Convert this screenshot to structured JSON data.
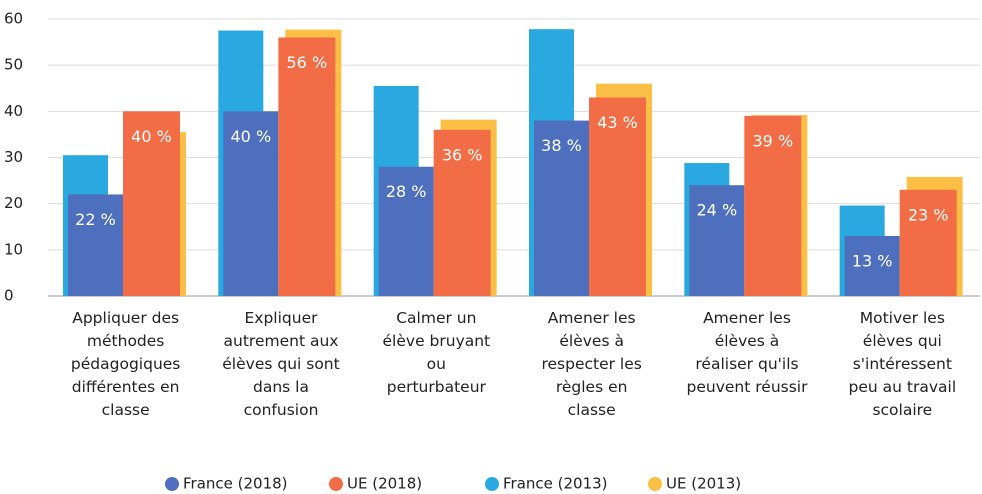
{
  "chart_data": {
    "type": "bar",
    "categories": [
      "Appliquer des\nméthodes\npédagogiques\ndifférentes en\nclasse",
      "Expliquer\nautrement aux\nélèves qui sont\ndans la\nconfusion",
      "Calmer un\nélève bruyant\nou\nperturbateur",
      "Amener les\nélèves à\nrespecter les\nrègles en\nclasse",
      "Amener les\nélèves à\nréaliser qu'ils\npeuvent réussir",
      "Motiver les\nélèves qui\ns'intéressent\npeu au travail\nscolaire"
    ],
    "series": [
      {
        "name": "France (2018)",
        "color": "#4e6fbe",
        "values": [
          22,
          40,
          28,
          38,
          24,
          13
        ],
        "value_labels": [
          "22 %",
          "40 %",
          "28 %",
          "38 %",
          "24 %",
          "13 %"
        ]
      },
      {
        "name": "UE (2018)",
        "color": "#f26c45",
        "values": [
          40,
          56,
          36,
          43,
          39,
          23
        ],
        "value_labels": [
          "40 %",
          "56 %",
          "36 %",
          "43 %",
          "39 %",
          "23 %"
        ]
      },
      {
        "name": "France (2013)",
        "color": "#29a9e0",
        "values": [
          30.5,
          57.5,
          45.5,
          57.8,
          28.8,
          19.6
        ]
      },
      {
        "name": "UE (2013)",
        "color": "#fbbf46",
        "values": [
          35.5,
          57.7,
          38.2,
          46,
          39.2,
          25.8
        ]
      }
    ],
    "ylim": [
      0,
      60
    ],
    "yticks": [
      0,
      10,
      20,
      30,
      40,
      50,
      60
    ],
    "grid": true
  }
}
